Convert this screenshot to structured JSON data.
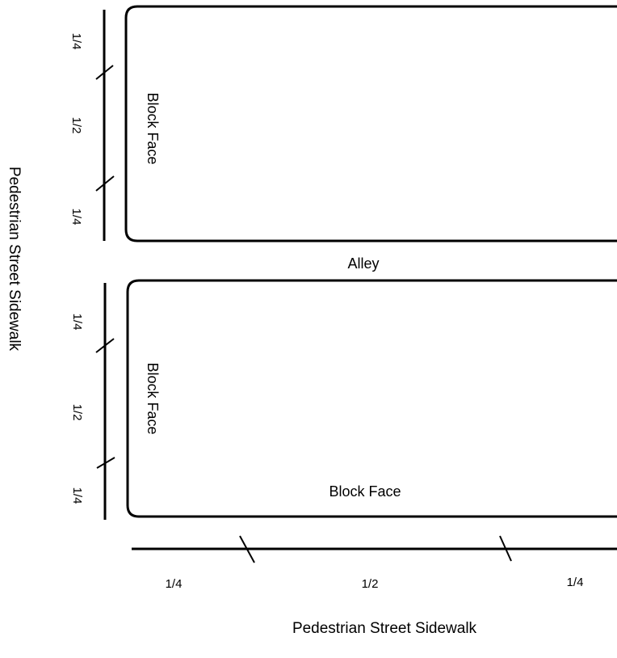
{
  "labels": {
    "left_sidewalk": "Pedestrian Street Sidewalk",
    "bottom_sidewalk": "Pedestrian Street Sidewalk",
    "alley": "Alley",
    "top_block_face": "Block Face",
    "bottom_block_face_left": "Block Face",
    "bottom_block_face_bottom": "Block Face"
  },
  "segments": {
    "top_left": [
      "1/4",
      "1/2",
      "1/4"
    ],
    "bottom_left": [
      "1/4",
      "1/2",
      "1/4"
    ],
    "bottom": [
      "1/4",
      "1/2",
      "1/4"
    ]
  },
  "colors": {
    "stroke": "#000000",
    "background": "#ffffff"
  }
}
